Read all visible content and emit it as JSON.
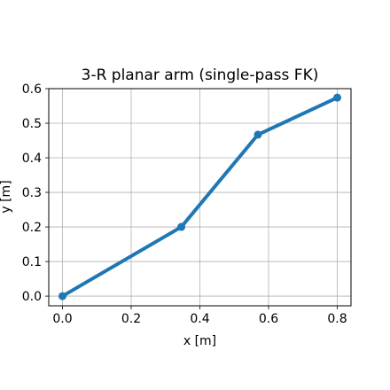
{
  "chart_data": {
    "type": "line",
    "title": "3-R planar arm (single-pass FK)",
    "xlabel": "x [m]",
    "ylabel": "y [m]",
    "xlim": [
      -0.04,
      0.84
    ],
    "ylim": [
      -0.028,
      0.6
    ],
    "xticks": [
      0.0,
      0.2,
      0.4,
      0.6,
      0.8
    ],
    "xtick_labels": [
      "0.0",
      "0.2",
      "0.4",
      "0.6",
      "0.8"
    ],
    "yticks": [
      0.0,
      0.1,
      0.2,
      0.3,
      0.4,
      0.5,
      0.6
    ],
    "ytick_labels": [
      "0.0",
      "0.1",
      "0.2",
      "0.3",
      "0.4",
      "0.5",
      "0.6"
    ],
    "grid": true,
    "series": [
      {
        "color": "#1f77b4",
        "marker": "circle",
        "x": [
          0.0,
          0.346,
          0.569,
          0.8
        ],
        "y": [
          0.0,
          0.2,
          0.467,
          0.574
        ]
      }
    ]
  }
}
